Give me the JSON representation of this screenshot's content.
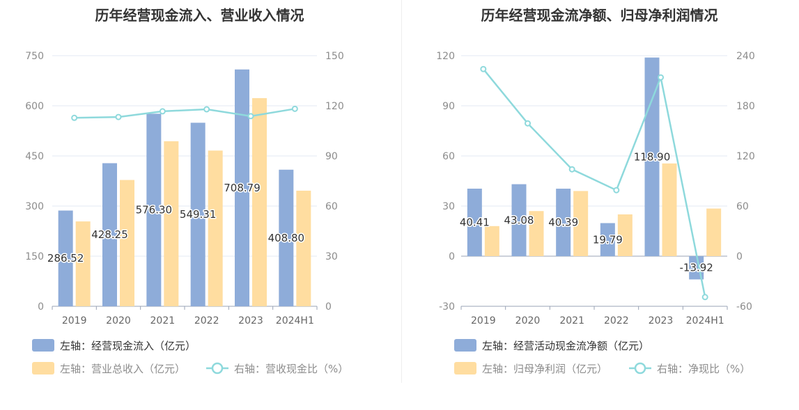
{
  "chart_data": [
    {
      "type": "bar",
      "title": "历年经营现金流入、营业收入情况",
      "categories": [
        "2019",
        "2020",
        "2021",
        "2022",
        "2023",
        "2024H1"
      ],
      "left_axis": {
        "ticks": [
          "0",
          "150",
          "300",
          "450",
          "600",
          "750"
        ],
        "ylim": [
          0,
          750
        ]
      },
      "right_axis": {
        "ticks": [
          "0",
          "30",
          "60",
          "90",
          "120",
          "150"
        ],
        "ylim": [
          0,
          150
        ]
      },
      "series": [
        {
          "name": "左轴：经营现金流入（亿元）",
          "type": "bar",
          "axis": "left",
          "color": "#8eacd9",
          "values": [
            286.52,
            428.25,
            576.3,
            549.31,
            708.79,
            408.8
          ],
          "labels": [
            "286.52",
            "428.25",
            "576.30",
            "549.31",
            "708.79",
            "408.80"
          ]
        },
        {
          "name": "左轴：营业总收入（亿元）",
          "type": "bar",
          "axis": "left",
          "color": "#ffdda0",
          "values": [
            254,
            378,
            494,
            466,
            623,
            346
          ]
        },
        {
          "name": "右轴：营收现金比（%）",
          "type": "line",
          "axis": "right",
          "color": "#8ed9dc",
          "values": [
            112.8,
            113.3,
            116.7,
            117.9,
            113.8,
            118.2
          ]
        }
      ],
      "legend_placement": "bottom-left",
      "grid": true
    },
    {
      "type": "bar",
      "title": "历年经营现金流净额、归母净利润情况",
      "categories": [
        "2019",
        "2020",
        "2021",
        "2022",
        "2023",
        "2024H1"
      ],
      "left_axis": {
        "ticks": [
          "-30",
          "0",
          "30",
          "60",
          "90",
          "120"
        ],
        "ylim": [
          -30,
          120
        ]
      },
      "right_axis": {
        "ticks": [
          "-60",
          "0",
          "60",
          "120",
          "180",
          "240"
        ],
        "ylim": [
          -60,
          240
        ]
      },
      "series": [
        {
          "name": "左轴：经营活动现金流净额（亿元）",
          "type": "bar",
          "axis": "left",
          "color": "#8eacd9",
          "values": [
            40.41,
            43.08,
            40.39,
            19.79,
            118.9,
            -13.92
          ],
          "labels": [
            "40.41",
            "43.08",
            "40.39",
            "19.79",
            "118.90",
            "-13.92"
          ]
        },
        {
          "name": "左轴：归母净利润（亿元）",
          "type": "bar",
          "axis": "left",
          "color": "#ffdda0",
          "values": [
            18,
            27,
            39,
            25,
            55.5,
            28.5
          ]
        },
        {
          "name": "右轴：净现比（%）",
          "type": "line",
          "axis": "right",
          "color": "#8ed9dc",
          "values": [
            224,
            159,
            104,
            79,
            214,
            -49
          ]
        }
      ],
      "legend_placement": "bottom-left",
      "grid": true
    }
  ]
}
